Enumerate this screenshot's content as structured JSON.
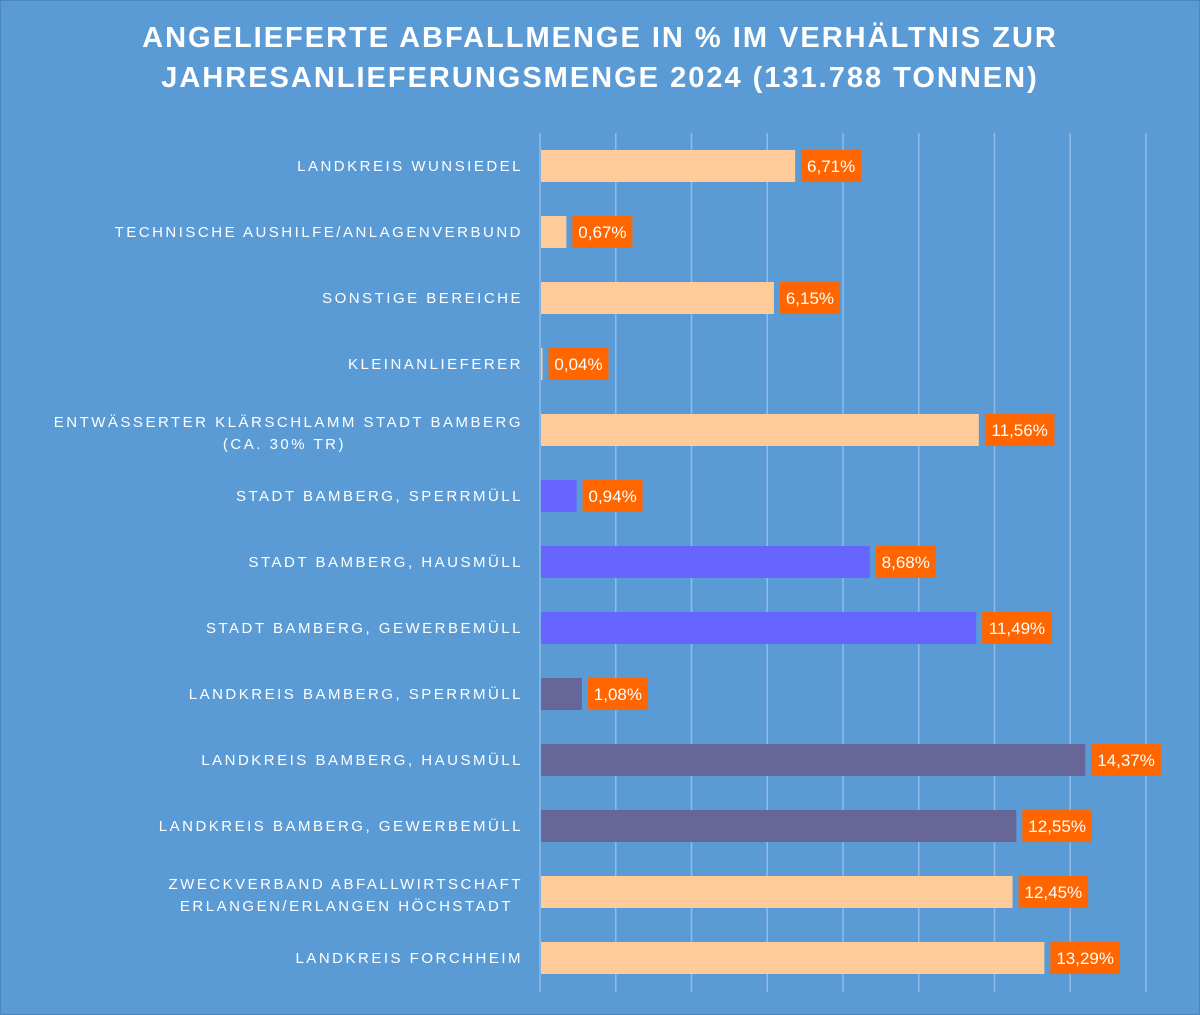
{
  "chart_data": {
    "type": "bar",
    "orientation": "horizontal",
    "title_lines": [
      "ANGELIEFERTE ABFALLMENGE IN % IM VERHÄLTNIS ZUR",
      "JAHRESANLIEFERUNGSMENGE 2024 (131.788 TONNEN)"
    ],
    "categories": [
      [
        "LANDKREIS WUNSIEDEL"
      ],
      [
        "TECHNISCHE AUSHILFE/ANLAGENVERBUND"
      ],
      [
        "SONSTIGE BEREICHE"
      ],
      [
        "KLEINANLIEFERER"
      ],
      [
        "ENTWÄSSERTER KLÄRSCHLAMM STADT BAMBERG",
        "(CA. 30% TR)"
      ],
      [
        "STADT BAMBERG, SPERRMÜLL"
      ],
      [
        "STADT BAMBERG, HAUSMÜLL"
      ],
      [
        "STADT BAMBERG, GEWERBEMÜLL"
      ],
      [
        "LANDKREIS BAMBERG, SPERRMÜLL"
      ],
      [
        "LANDKREIS BAMBERG, HAUSMÜLL"
      ],
      [
        "LANDKREIS BAMBERG, GEWERBEMÜLL"
      ],
      [
        "ZWECKVERBAND ABFALLWIRTSCHAFT",
        "ERLANGEN/ERLANGEN HÖCHSTADT"
      ],
      [
        "LANDKREIS FORCHHEIM"
      ]
    ],
    "values": [
      6.71,
      0.67,
      6.15,
      0.04,
      11.56,
      0.94,
      8.68,
      11.49,
      1.08,
      14.37,
      12.55,
      12.45,
      13.29
    ],
    "data_labels": [
      "6,71%",
      "0,67%",
      "6,15%",
      "0,04%",
      "11,56%",
      "0,94%",
      "8,68%",
      "11,49%",
      "1,08%",
      "14,37%",
      "12,55%",
      "12,45%",
      "13,29%"
    ],
    "bar_colors": [
      "#ffcc99",
      "#ffcc99",
      "#ffcc99",
      "#ffcc99",
      "#ffcc99",
      "#6666ff",
      "#6666ff",
      "#6666ff",
      "#666699",
      "#666699",
      "#666699",
      "#ffcc99",
      "#ffcc99"
    ],
    "label_background": "#ff6600",
    "background": "#5b9bd5",
    "xlim": [
      0,
      16
    ],
    "x_gridline_step": 2,
    "x_tick_labels_shown": false,
    "grid": true
  }
}
